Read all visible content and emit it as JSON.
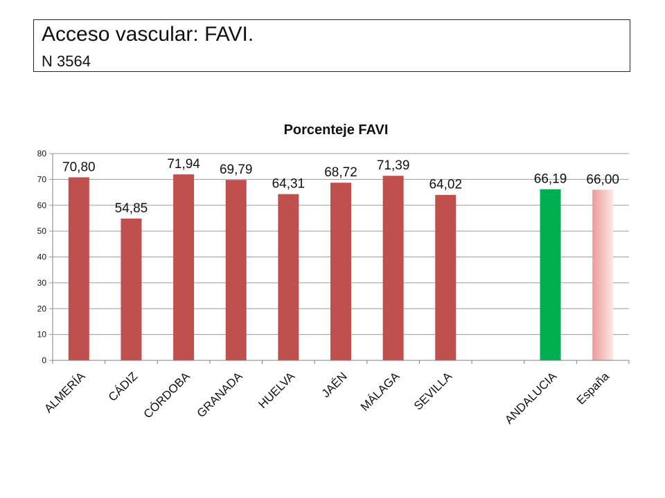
{
  "header": {
    "title": "Acceso vascular: FAVI.",
    "subtitle": "N 3564"
  },
  "colors": {
    "province_bar": "#c0504d",
    "andalucia_bar": "#00b050",
    "espana_bar_light": "#fde7e7",
    "espana_bar_dark": "#ec9c9b",
    "grid": "#9a9a9a",
    "text": "#111111"
  },
  "chart_data": {
    "type": "bar",
    "title": "Porcenteje FAVI",
    "xlabel": "",
    "ylabel": "",
    "ylim": [
      0,
      80
    ],
    "yticks": [
      0,
      10,
      20,
      30,
      40,
      50,
      60,
      70,
      80
    ],
    "grid": true,
    "legend": "none",
    "categories": [
      "ALMERÍA",
      "CÁDIZ",
      "CÓRDOBA",
      "GRANADA",
      "HUELVA",
      "JAÉN",
      "MÁLAGA",
      "SEVILLA",
      "",
      "ANDALUCIA",
      "España"
    ],
    "values": [
      70.8,
      54.85,
      71.94,
      69.79,
      64.31,
      68.72,
      71.39,
      64.02,
      null,
      66.19,
      66.0
    ],
    "data_labels": [
      "70,80",
      "54,85",
      "71,94",
      "69,79",
      "64,31",
      "68,72",
      "71,39",
      "64,02",
      "",
      "66,19",
      "66,00"
    ],
    "bar_styles": [
      "province",
      "province",
      "province",
      "province",
      "province",
      "province",
      "province",
      "province",
      "none",
      "andalucia",
      "espana"
    ]
  }
}
